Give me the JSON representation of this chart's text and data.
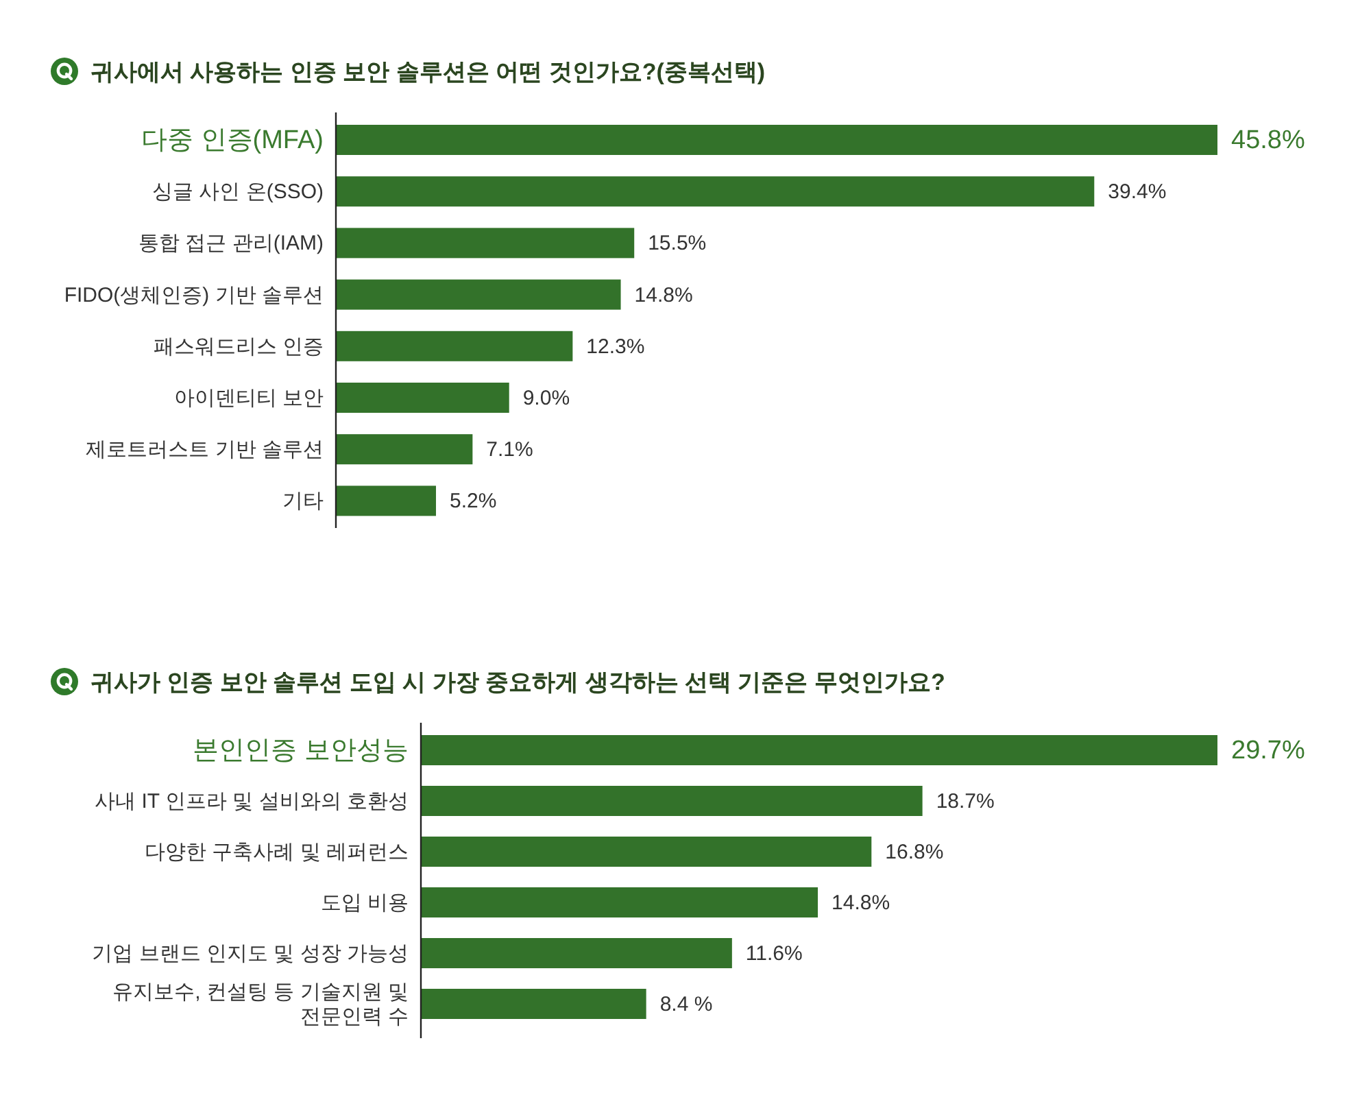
{
  "chart_data": [
    {
      "type": "bar",
      "orientation": "horizontal",
      "title": "귀사에서 사용하는 인증 보안 솔루션은 어떤 것인가요?(중복선택)",
      "categories": [
        "다중 인증(MFA)",
        "싱글 사인 온(SSO)",
        "통합 접근 관리(IAM)",
        "FIDO(생체인증) 기반 솔루션",
        "패스워드리스 인증",
        "아이덴티티 보안",
        "제로트러스트 기반 솔루션",
        "기타"
      ],
      "values": [
        45.8,
        39.4,
        15.5,
        14.8,
        12.3,
        9.0,
        7.1,
        5.2
      ],
      "value_labels": [
        "45.8%",
        "39.4%",
        "15.5%",
        "14.8%",
        "12.3%",
        "9.0%",
        "7.1%",
        "5.2%"
      ],
      "color": "#33722a",
      "tick_labels": "y"
    },
    {
      "type": "bar",
      "orientation": "horizontal",
      "title": "귀사가 인증 보안 솔루션 도입 시 가장 중요하게 생각하는 선택 기준은 무엇인가요?",
      "categories": [
        "본인인증 보안성능",
        "사내 IT 인프라 및 설비와의 호환성",
        "다양한 구축사례 및 레퍼런스",
        "도입 비용",
        "기업 브랜드 인지도 및 성장 가능성",
        "유지보수, 컨설팅 등 기술지원 및 전문인력 수"
      ],
      "values": [
        29.7,
        18.7,
        16.8,
        14.8,
        11.6,
        8.4
      ],
      "value_labels": [
        "29.7%",
        "18.7%",
        "16.8%",
        "14.8%",
        "11.6%",
        "8.4 %"
      ],
      "color": "#33722a",
      "tick_labels": "y"
    }
  ]
}
